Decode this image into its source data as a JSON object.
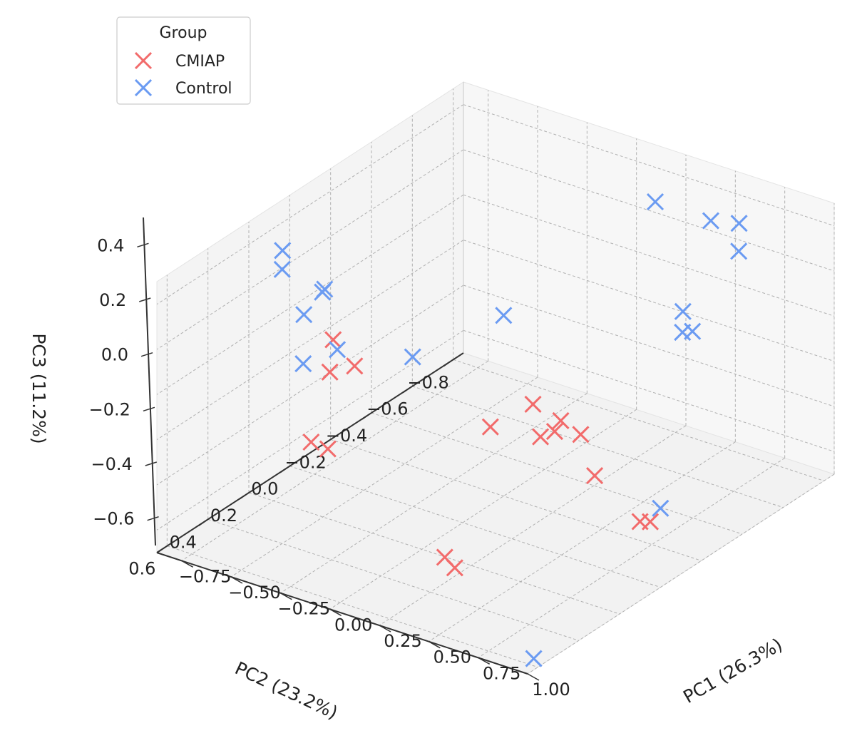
{
  "chart_data": {
    "type": "scatter3d",
    "axes": {
      "x": {
        "label": "PC1 (26.3%)",
        "range": [
          -0.875,
          1.0
        ],
        "ticks": [
          -0.75,
          -0.5,
          -0.25,
          0.0,
          0.25,
          0.5,
          0.75,
          1.0
        ],
        "tick_labels": [
          "−0.75",
          "−0.50",
          "−0.25",
          "0.00",
          "0.25",
          "0.50",
          "0.75",
          "1.00"
        ]
      },
      "y": {
        "label": "PC2 (23.2%)",
        "range": [
          -0.85,
          0.65
        ],
        "ticks": [
          -0.8,
          -0.6,
          -0.4,
          -0.2,
          0.0,
          0.2,
          0.4,
          0.6
        ],
        "tick_labels": [
          "−0.8",
          "−0.6",
          "−0.4",
          "−0.2",
          "0.0",
          "0.2",
          "0.4",
          "0.6"
        ]
      },
      "z": {
        "label": "PC3 (11.2%)",
        "range": [
          -0.7,
          0.5
        ],
        "ticks": [
          -0.6,
          -0.4,
          -0.2,
          0.0,
          0.2,
          0.4
        ],
        "tick_labels": [
          "−0.6",
          "−0.4",
          "−0.2",
          "0.0",
          "0.2",
          "0.4"
        ]
      }
    },
    "grid": true,
    "legend": {
      "title": "Group",
      "position": "top-left"
    },
    "series": [
      {
        "name": "CMIAP",
        "color": "#f26b6b",
        "marker": "x",
        "points": [
          {
            "x": 0.0,
            "y": 0.65,
            "z": 0.35
          },
          {
            "x": -0.03,
            "y": 0.5,
            "z": 0.28
          },
          {
            "x": -0.18,
            "y": 0.46,
            "z": 0.33
          },
          {
            "x": 0.45,
            "y": 0.3,
            "z": 0.03
          },
          {
            "x": 0.5,
            "y": 0.14,
            "z": 0.05
          },
          {
            "x": 0.62,
            "y": 0.12,
            "z": 0.0
          },
          {
            "x": 0.62,
            "y": 0.15,
            "z": -0.03
          },
          {
            "x": 0.6,
            "y": 0.2,
            "z": -0.03
          },
          {
            "x": 0.7,
            "y": 0.1,
            "z": -0.05
          },
          {
            "x": -0.25,
            "y": 0.5,
            "z": -0.12
          },
          {
            "x": -0.31,
            "y": 0.36,
            "z": -0.25
          },
          {
            "x": 0.55,
            "y": 0.62,
            "z": -0.33
          },
          {
            "x": 0.58,
            "y": 0.6,
            "z": -0.38
          },
          {
            "x": 0.75,
            "y": 0.08,
            "z": -0.23
          },
          {
            "x": 1.0,
            "y": 0.05,
            "z": -0.38
          },
          {
            "x": 1.0,
            "y": 0.1,
            "z": -0.35
          }
        ]
      },
      {
        "name": "Control",
        "color": "#6b9bf2",
        "marker": "x",
        "points": [
          {
            "x": 0.55,
            "y": -0.82,
            "z": 0.3
          },
          {
            "x": 0.5,
            "y": -0.73,
            "z": 0.35
          },
          {
            "x": 0.25,
            "y": -0.7,
            "z": 0.38
          },
          {
            "x": 0.6,
            "y": -0.77,
            "z": 0.22
          },
          {
            "x": 0.7,
            "y": -0.4,
            "z": 0.2
          },
          {
            "x": 0.76,
            "y": -0.34,
            "z": 0.16
          },
          {
            "x": 0.8,
            "y": -0.35,
            "z": 0.17
          },
          {
            "x": -0.7,
            "y": 0.1,
            "z": 0.08
          },
          {
            "x": -0.6,
            "y": 0.2,
            "z": -0.05
          },
          {
            "x": -0.5,
            "y": 0.13,
            "z": 0.0
          },
          {
            "x": -0.75,
            "y": -0.05,
            "z": 0.09
          },
          {
            "x": -0.87,
            "y": 0.04,
            "z": 0.28
          },
          {
            "x": -0.82,
            "y": 0.09,
            "z": 0.24
          },
          {
            "x": -0.73,
            "y": -0.02,
            "z": 0.1
          },
          {
            "x": 0.0,
            "y": -0.2,
            "z": 0.1
          },
          {
            "x": -0.15,
            "y": 0.1,
            "z": 0.05
          },
          {
            "x": 1.0,
            "y": 0.0,
            "z": -0.35
          },
          {
            "x": 1.0,
            "y": 0.62,
            "z": -0.65
          }
        ]
      }
    ]
  }
}
